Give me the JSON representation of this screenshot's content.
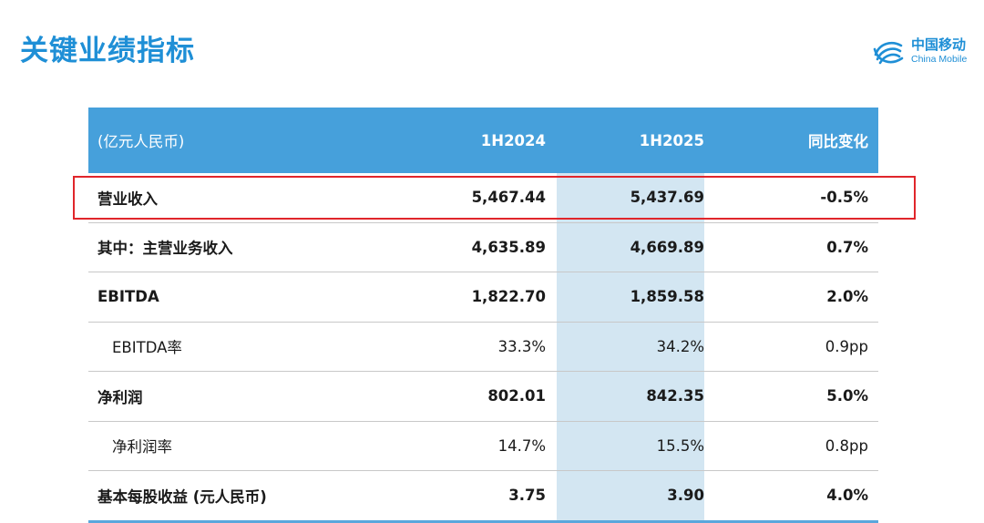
{
  "page": {
    "title": "关键业绩指标"
  },
  "logo": {
    "name_cn": "中国移动",
    "name_en": "China Mobile",
    "icon": "china-mobile-logo-icon",
    "color": "#1f8fd6"
  },
  "table": {
    "header": {
      "label": "(亿元人民币)",
      "col_a": "1H2024",
      "col_b": "1H2025",
      "col_c": "同比变化"
    },
    "rows": [
      {
        "label": "营业收入",
        "a": "5,467.44",
        "b": "5,437.69",
        "c": "-0.5%"
      },
      {
        "label": "其中：主营业务收入",
        "a": "4,635.89",
        "b": "4,669.89",
        "c": "0.7%"
      },
      {
        "label": "EBITDA",
        "a": "1,822.70",
        "b": "1,859.58",
        "c": "2.0%"
      },
      {
        "label": "EBITDA率",
        "a": "33.3%",
        "b": "34.2%",
        "c": "0.9pp"
      },
      {
        "label": "净利润",
        "a": "802.01",
        "b": "842.35",
        "c": "5.0%"
      },
      {
        "label": "净利润率",
        "a": "14.7%",
        "b": "15.5%",
        "c": "0.8pp"
      },
      {
        "label": "基本每股收益 (元人民币)",
        "a": "3.75",
        "b": "3.90",
        "c": "4.0%"
      }
    ]
  },
  "colors": {
    "accent": "#1f8fd6",
    "header_bg": "#46a0db",
    "highlight_column": "#d3e6f2",
    "highlight_border": "#e0262b"
  }
}
